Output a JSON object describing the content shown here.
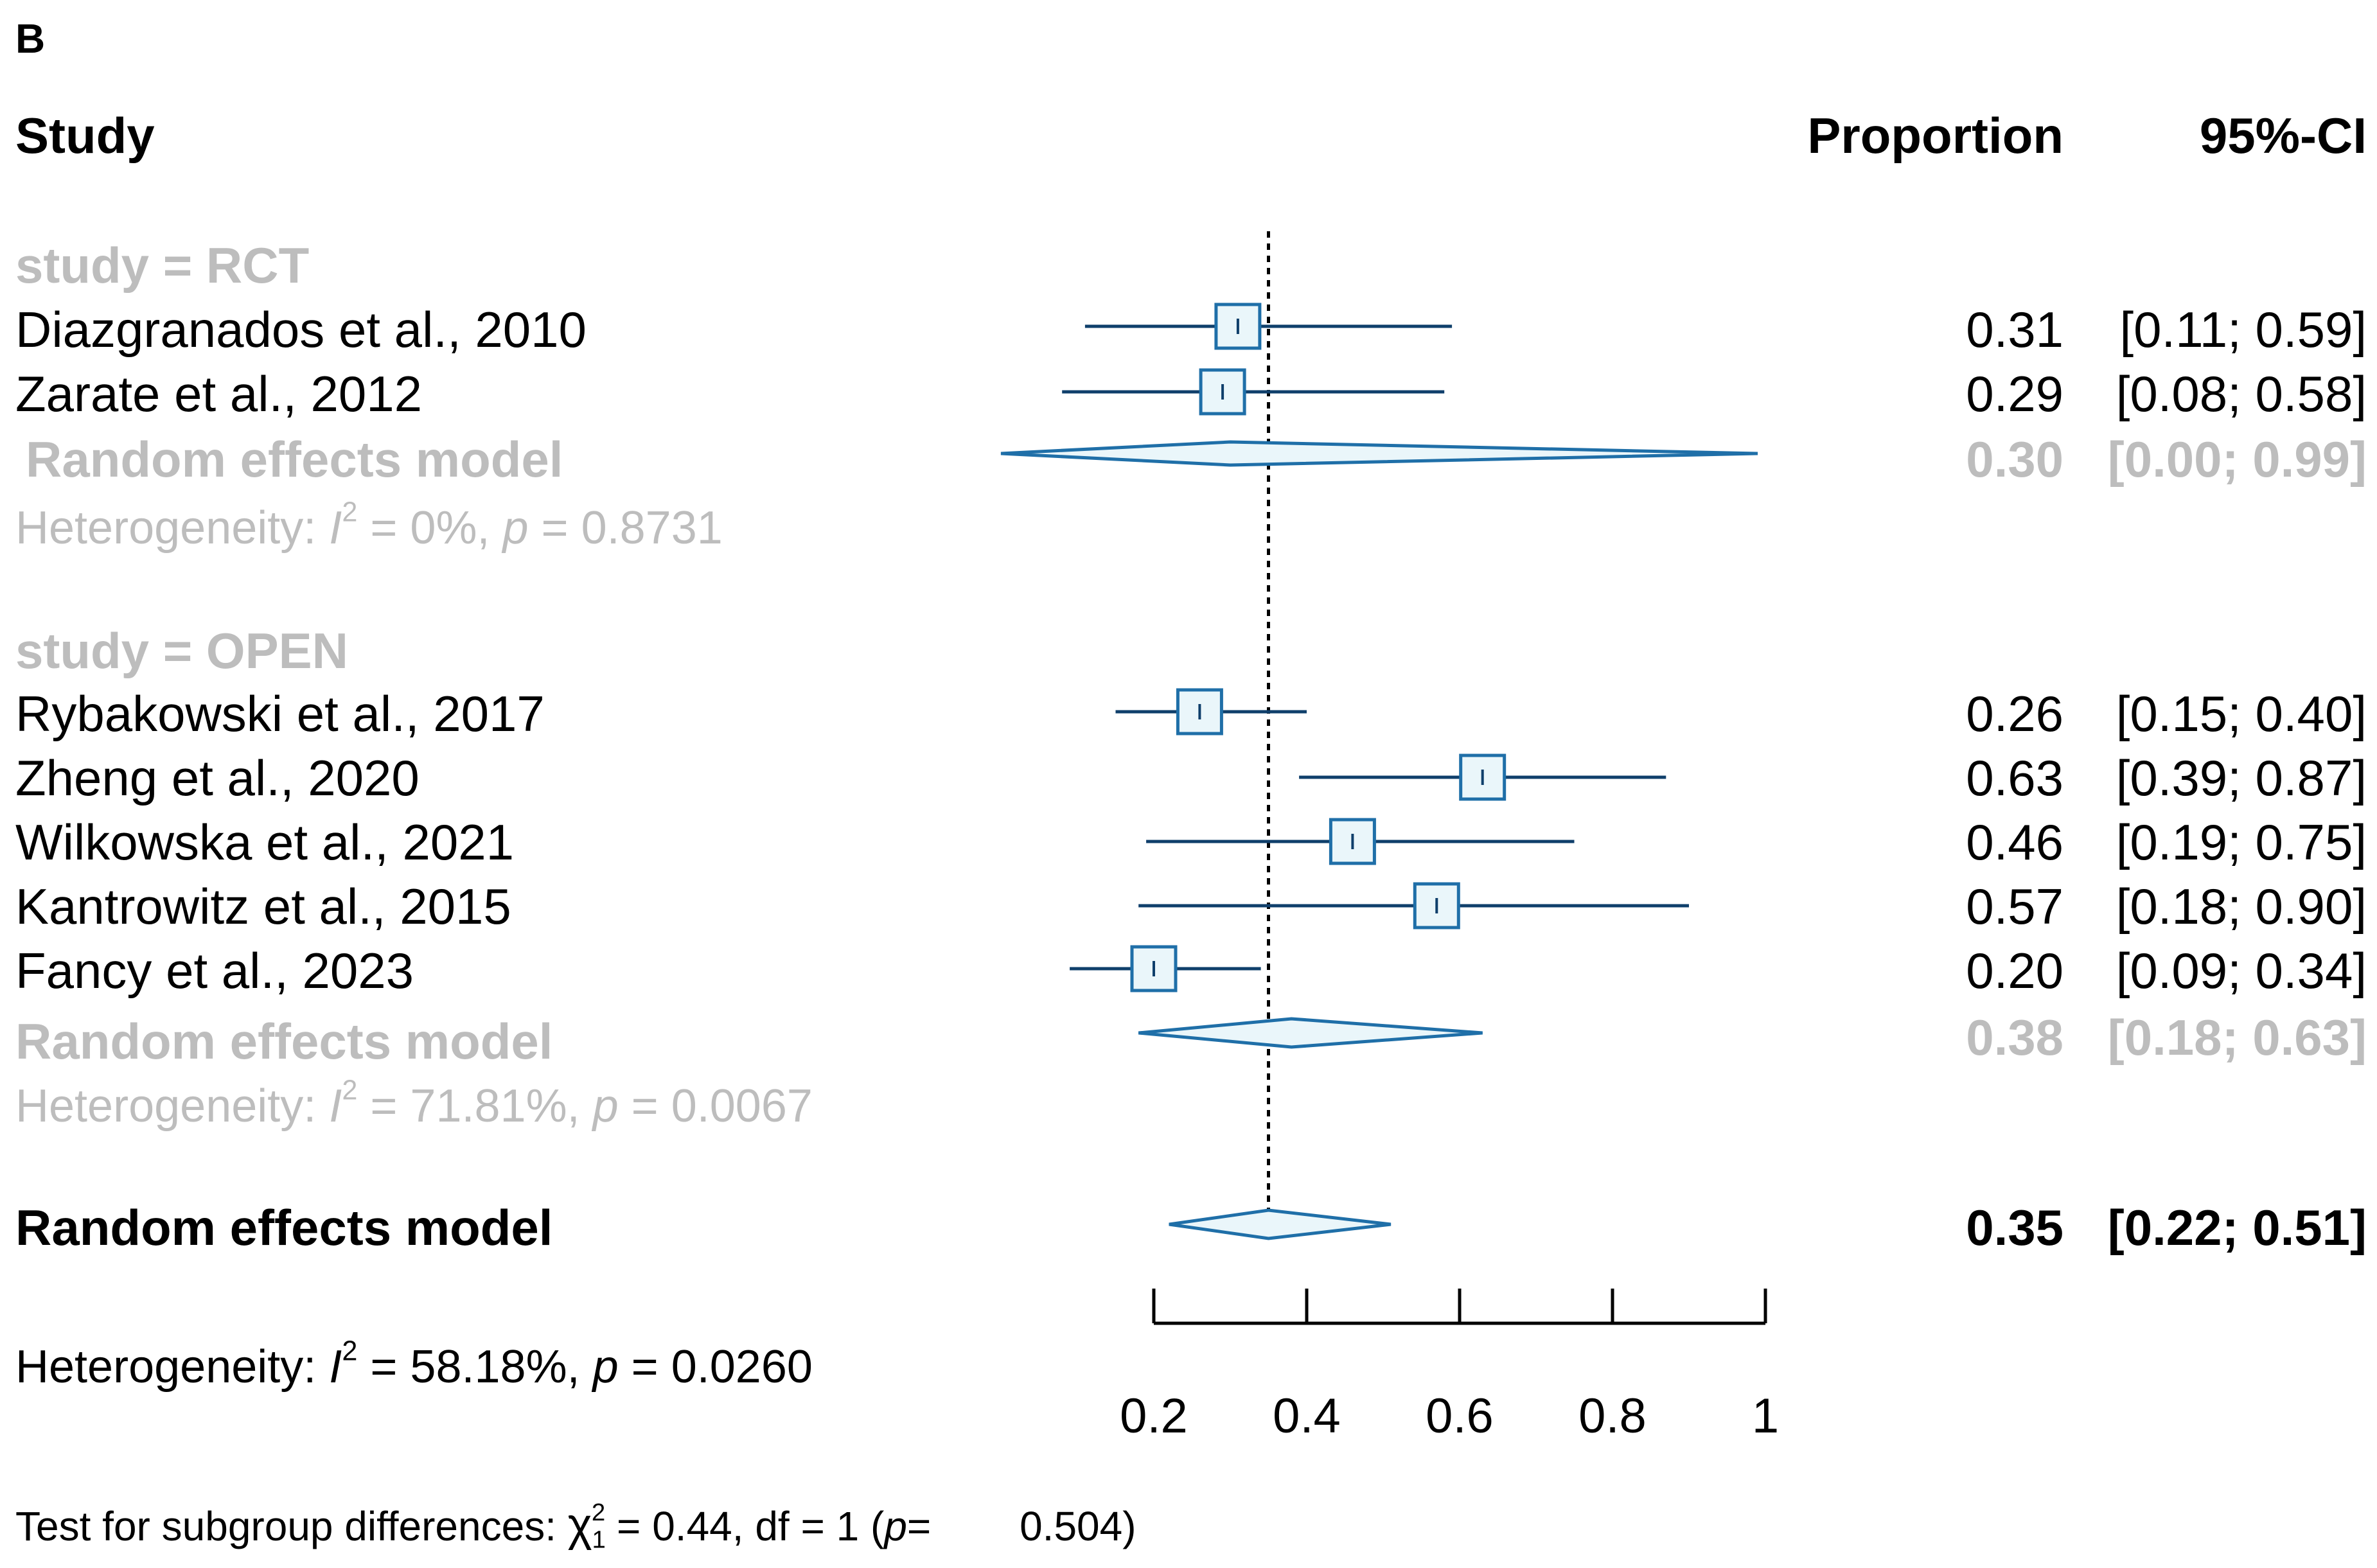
{
  "panel_label": "B",
  "headers": {
    "study": "Study",
    "proportion": "Proportion",
    "ci": "95%-CI"
  },
  "colors": {
    "box_stroke": "#1f6fa8",
    "box_fill": "#eaf6fa",
    "ci_line": "#0f3f6b",
    "subgroup_gray": "#bdbdbd",
    "ref_line": "#000000"
  },
  "subgroups": [
    {
      "label": "study = RCT",
      "studies": [
        {
          "name": "Diazgranados et al., 2010",
          "prop": "0.31",
          "ci": "[0.11; 0.59]"
        },
        {
          "name": "Zarate et al., 2012",
          "prop": "0.29",
          "ci": "[0.08; 0.58]"
        }
      ],
      "model": {
        "label": "Random effects model",
        "prop": "0.30",
        "ci": "[0.00; 0.99]"
      },
      "het": {
        "prefix": "Heterogeneity: ",
        "i": "I",
        "exp": "2",
        "eq": " = 0%, ",
        "p": "p",
        "pval": " = 0.8731"
      }
    },
    {
      "label": "study = OPEN",
      "studies": [
        {
          "name": "Rybakowski et al., 2017",
          "prop": "0.26",
          "ci": "[0.15; 0.40]"
        },
        {
          "name": "Zheng et al., 2020",
          "prop": "0.63",
          "ci": "[0.39;  0.87]"
        },
        {
          "name": "Wilkowska et al., 2021",
          "prop": "0.46",
          "ci": "[0.19; 0.75]"
        },
        {
          "name": "Kantrowitz et al., 2015",
          "prop": "0.57",
          "ci": "[0.18; 0.90]"
        },
        {
          "name": "Fancy et al., 2023",
          "prop": "0.20",
          "ci": "[0.09; 0.34]"
        }
      ],
      "model": {
        "label": "Random effects model",
        "prop": "0.38",
        "ci": "[0.18; 0.63]"
      },
      "het": {
        "prefix": "Heterogeneity: ",
        "i": "I",
        "exp": "2",
        "eq": " = 71.81%, ",
        "p": "p",
        "pval": " = 0.0067"
      }
    }
  ],
  "overall": {
    "label": "Random effects model",
    "prop": "0.35",
    "ci": "[0.22; 0.51]",
    "het": {
      "prefix": "Heterogeneity: ",
      "i": "I",
      "exp": "2",
      "eq": " = 58.18%, ",
      "p": "p",
      "pval": " = 0.0260"
    }
  },
  "subgroup_test": {
    "prefix": "Test for subgroup differences: ",
    "chi": "χ",
    "sub": "1",
    "exp": "2",
    "stat": " = 0.44, df = 1 (",
    "p": "p",
    "eq": "= ",
    "pval": "0.504)"
  },
  "chart_data": {
    "type": "forest",
    "xlabel": "",
    "xlim": [
      0.2,
      1
    ],
    "ticks": [
      0.2,
      0.4,
      0.6,
      0.8,
      1
    ],
    "tick_labels": [
      "0.2",
      "0.4",
      "0.6",
      "0.8",
      "1"
    ],
    "reference_line": 0.35,
    "studies": [
      {
        "name": "Diazgranados et al., 2010",
        "group": "RCT",
        "est": 0.31,
        "lo": 0.11,
        "hi": 0.59,
        "weight": 1.0
      },
      {
        "name": "Zarate et al., 2012",
        "group": "RCT",
        "est": 0.29,
        "lo": 0.08,
        "hi": 0.58,
        "weight": 1.0
      },
      {
        "name": "Rybakowski et al., 2017",
        "group": "OPEN",
        "est": 0.26,
        "lo": 0.15,
        "hi": 0.4,
        "weight": 1.0
      },
      {
        "name": "Zheng et al., 2020",
        "group": "OPEN",
        "est": 0.63,
        "lo": 0.39,
        "hi": 0.87,
        "weight": 1.0
      },
      {
        "name": "Wilkowska et al., 2021",
        "group": "OPEN",
        "est": 0.46,
        "lo": 0.19,
        "hi": 0.75,
        "weight": 1.0
      },
      {
        "name": "Kantrowitz et al., 2015",
        "group": "OPEN",
        "est": 0.57,
        "lo": 0.18,
        "hi": 0.9,
        "weight": 1.0
      },
      {
        "name": "Fancy et al., 2023",
        "group": "OPEN",
        "est": 0.2,
        "lo": 0.09,
        "hi": 0.34,
        "weight": 1.0
      }
    ],
    "pooled": [
      {
        "name": "Random effects model (RCT)",
        "est": 0.3,
        "lo": 0.0,
        "hi": 0.99
      },
      {
        "name": "Random effects model (OPEN)",
        "est": 0.38,
        "lo": 0.18,
        "hi": 0.63
      },
      {
        "name": "Random effects model (overall)",
        "est": 0.35,
        "lo": 0.22,
        "hi": 0.51
      }
    ]
  }
}
